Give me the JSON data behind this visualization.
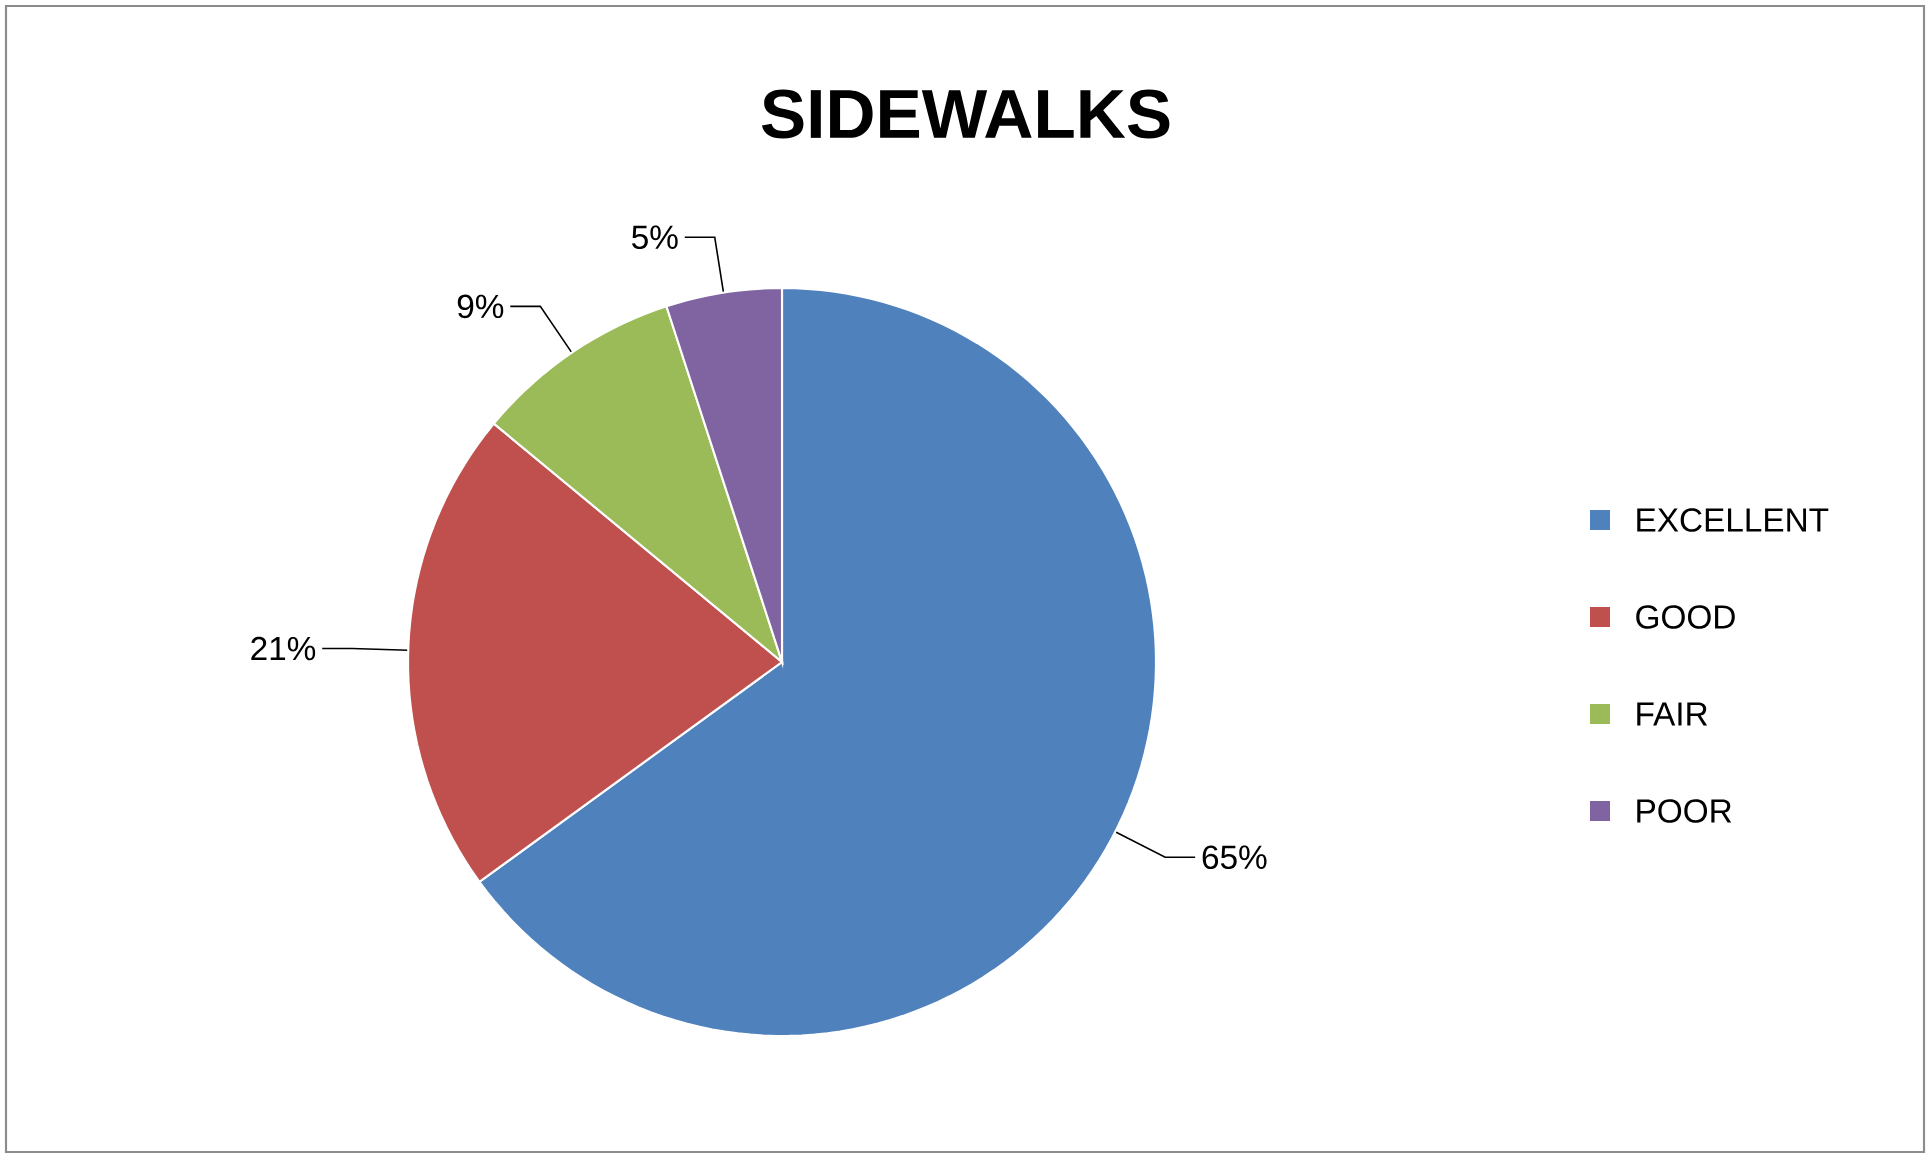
{
  "chart_data": {
    "type": "pie",
    "title": "SIDEWALKS",
    "categories": [
      "EXCELLENT",
      "GOOD",
      "FAIR",
      "POOR"
    ],
    "values": [
      65,
      21,
      9,
      5
    ],
    "colors": [
      "#4f81bd",
      "#c0504d",
      "#9bbb59",
      "#8064a2"
    ],
    "value_labels": [
      "65%",
      "21%",
      "9%",
      "5%"
    ],
    "legend": "right"
  }
}
